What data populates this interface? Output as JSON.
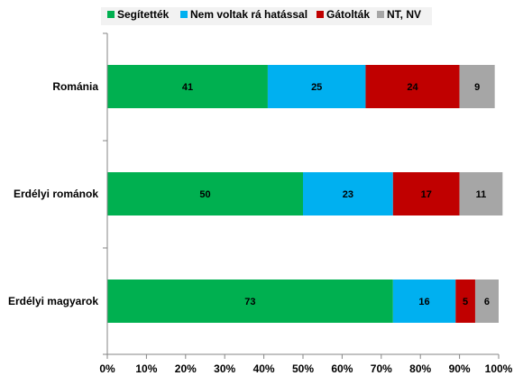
{
  "chart_data": {
    "type": "bar",
    "orientation": "horizontal",
    "stacked": true,
    "categories": [
      "Románia",
      "Erdélyi románok",
      "Erdélyi magyarok"
    ],
    "series": [
      {
        "name": "Segítették",
        "color": "#00b050",
        "values": [
          41,
          50,
          73
        ]
      },
      {
        "name": "Nem voltak rá hatással",
        "color": "#00b0f0",
        "values": [
          25,
          23,
          16
        ]
      },
      {
        "name": "Gátolták",
        "color": "#c00000",
        "values": [
          24,
          17,
          5
        ]
      },
      {
        "name": "NT, NV",
        "color": "#a6a6a6",
        "values": [
          9,
          11,
          6
        ]
      }
    ],
    "xlim": [
      0,
      100
    ],
    "x_ticks": [
      "0%",
      "10%",
      "20%",
      "30%",
      "40%",
      "50%",
      "60%",
      "70%",
      "80%",
      "90%",
      "100%"
    ],
    "legend_position": "top",
    "grid": false
  }
}
